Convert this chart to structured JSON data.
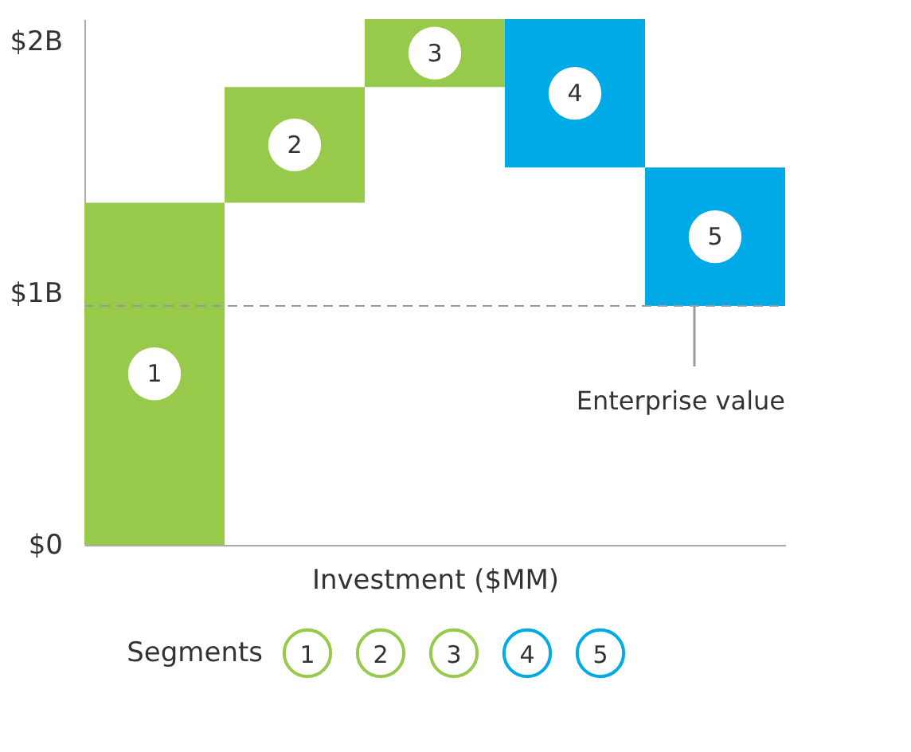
{
  "chart_data": {
    "type": "bar",
    "xlabel": "Investment ($MM)",
    "categories": [
      "1",
      "2",
      "3",
      "4",
      "5"
    ],
    "base": [
      0,
      1.36,
      1.82,
      2.09,
      1.5
    ],
    "values": [
      1.36,
      0.46,
      0.27,
      -0.59,
      -0.55
    ],
    "colors": [
      "#97c94b",
      "#97c94b",
      "#97c94b",
      "#00aae6",
      "#00aae6"
    ],
    "ylim": [
      0,
      2.09
    ],
    "yticks": [
      {
        "value": 0,
        "label": "$0"
      },
      {
        "value": 1,
        "label": "$1B"
      },
      {
        "value": 2,
        "label": "$2B"
      }
    ],
    "tick_labels": "y",
    "grid": false,
    "legend": "bottom",
    "legend_title": "Segments",
    "ref_lines": [
      {
        "axis": "y",
        "value": 0.95,
        "label": "Enterprise value",
        "color": "#999999",
        "line_style": "dashed"
      }
    ]
  }
}
